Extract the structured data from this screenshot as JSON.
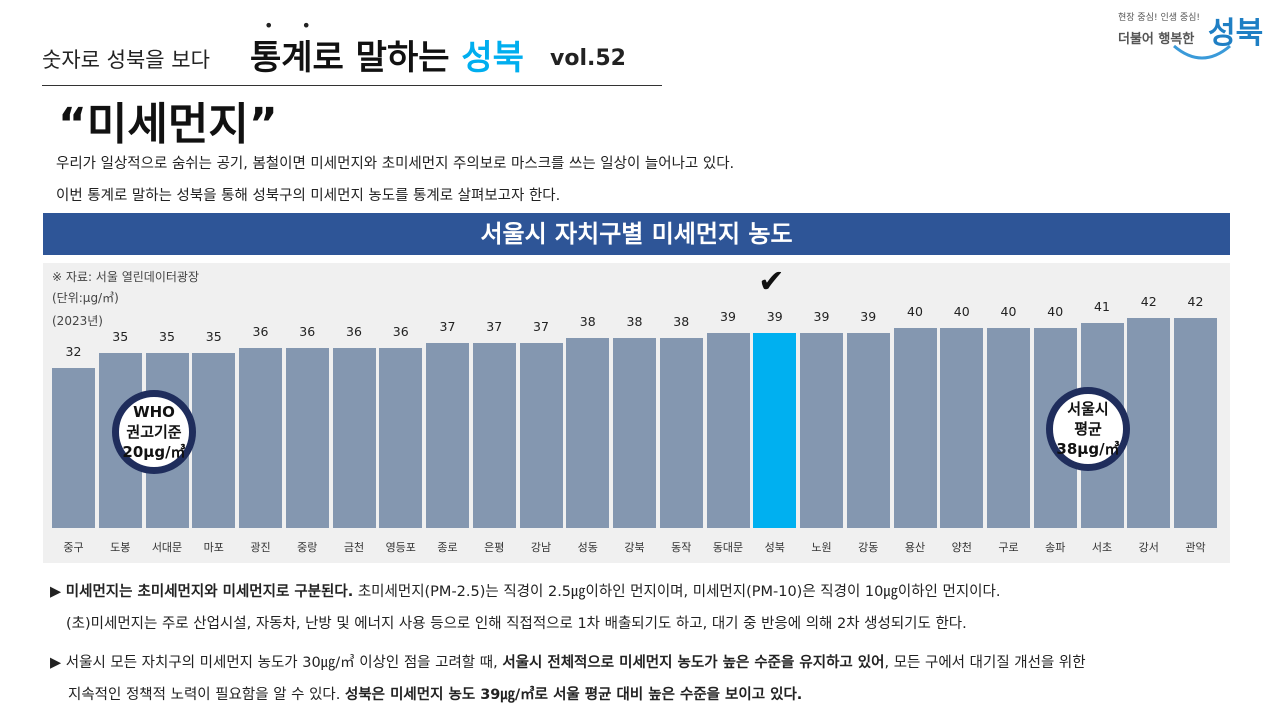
{
  "header": {
    "series": "숫자로 성북을 보다",
    "title_prefix": "통계로 말하는",
    "title_accent": "성북",
    "vol": "vol.52",
    "topic": "“미세먼지”"
  },
  "logo": {
    "slogan": "현장 중심! 인생 중심!",
    "line": "더불어 행복한",
    "name": "성북"
  },
  "intro": [
    "우리가 일상적으로 숨쉬는 공기, 봄철이면 미세먼지와 초미세먼지 주의보로 마스크를 쓰는 일상이 늘어나고 있다.",
    "이번 통계로 말하는 성북을 통해 성북구의 미세먼지 농도를 통계로 살펴보고자 한다."
  ],
  "chart_data": {
    "type": "bar",
    "title": "서울시 자치구별 미세먼지 농도",
    "source": "※ 자료: 서울 열린데이터광장",
    "unit": "(단위:μg/㎥)",
    "year": "(2023년)",
    "categories": [
      "중구",
      "도봉",
      "서대문",
      "마포",
      "광진",
      "중랑",
      "금천",
      "영등포",
      "종로",
      "은평",
      "강남",
      "성동",
      "강북",
      "동작",
      "동대문",
      "성북",
      "노원",
      "강동",
      "용산",
      "양천",
      "구로",
      "송파",
      "서초",
      "강서",
      "관악"
    ],
    "values": [
      32,
      35,
      35,
      35,
      36,
      36,
      36,
      36,
      37,
      37,
      37,
      38,
      38,
      38,
      39,
      39,
      39,
      39,
      40,
      40,
      40,
      40,
      41,
      42,
      42
    ],
    "highlight": "성북",
    "ylim": [
      0,
      53
    ],
    "colors": {
      "bar": "#8497b0",
      "highlight": "#00b0f0"
    },
    "annotations": {
      "who": [
        "WHO",
        "권고기준",
        "20μg/㎥"
      ],
      "avg": [
        "서울시",
        "평균",
        "38μg/㎥"
      ]
    }
  },
  "bullets": {
    "b1_bold": "미세먼지는 초미세먼지와 미세먼지로 구분된다.",
    "b1_rest": " 초미세먼지(PM-2.5)는 직경이 2.5㎍이하인 먼지이며, 미세먼지(PM-10)은 직경이 10㎍이하인 먼지이다.",
    "b1_line2": "(초)미세먼지는 주로 산업시설, 자동차, 난방 및 에너지 사용 등으로 인해 직접적으로 1차 배출되기도 하고, 대기 중 반응에 의해 2차 생성되기도 한다.",
    "b2_a": "서울시 모든 자치구의 미세먼지 농도가 30㎍/㎥ 이상인 점을 고려할 때, ",
    "b2_bold": "서울시 전체적으로 미세먼지 농도가 높은 수준을 유지하고 있어",
    "b2_c": ", 모든 구에서 대기질 개선을 위한",
    "b2_line2a": "지속적인 정책적 노력이 필요함을 알 수 있다. ",
    "b2_line2bold": "성북은 미세먼지 농도 39㎍/㎥로 서울 평균 대비 높은 수준을 보이고 있다."
  }
}
